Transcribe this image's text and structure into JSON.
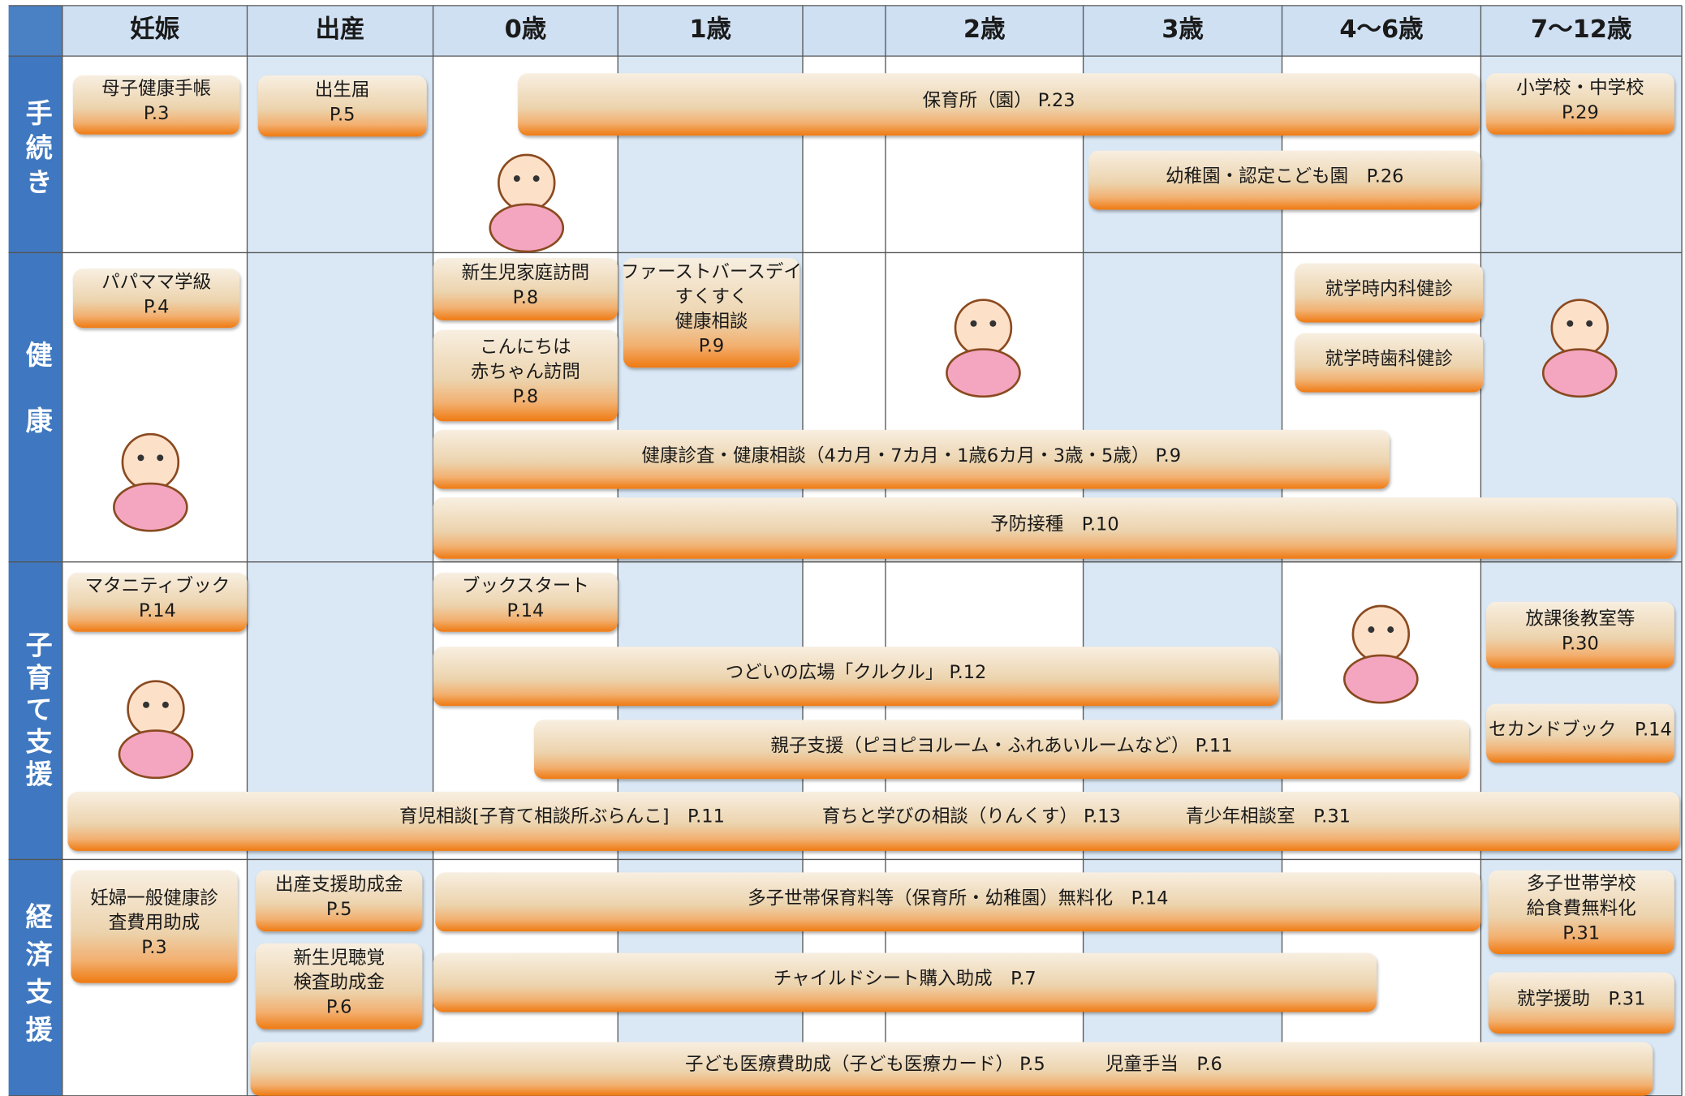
{
  "header": {
    "columns": [
      "妊娠",
      "出産",
      "0歳",
      "1歳",
      "2歳",
      "3歳",
      "4〜6歳",
      "7〜12歳"
    ]
  },
  "rows": [
    {
      "label": "手続き",
      "items": [
        {
          "lines": [
            "母子健康手帳",
            "P.3"
          ]
        },
        {
          "lines": [
            "出生届",
            "P.5"
          ]
        },
        {
          "lines": [
            "保育所（園） P.23"
          ]
        },
        {
          "lines": [
            "小学校・中学校",
            "P.29"
          ]
        },
        {
          "lines": [
            "幼稚園・認定こども園　P.26"
          ]
        }
      ]
    },
    {
      "label": "健康",
      "items": [
        {
          "lines": [
            "パパママ学級",
            "P.4"
          ]
        },
        {
          "lines": [
            "新生児家庭訪問",
            "P.8"
          ]
        },
        {
          "lines": [
            "ファーストバースデイ",
            "すくすく",
            "健康相談",
            "P.9"
          ]
        },
        {
          "lines": [
            "こんにちは",
            "赤ちゃん訪問",
            "P.8"
          ]
        },
        {
          "lines": [
            "就学時内科健診"
          ]
        },
        {
          "lines": [
            "就学時歯科健診"
          ]
        },
        {
          "lines": [
            "健康診査・健康相談（4カ月・7カ月・1歳6カ月・3歳・5歳） P.9"
          ]
        },
        {
          "lines": [
            "予防接種　P.10"
          ]
        }
      ]
    },
    {
      "label": "子育て支援",
      "items": [
        {
          "lines": [
            "マタニティブック",
            "P.14"
          ]
        },
        {
          "lines": [
            "ブックスタート",
            "P.14"
          ]
        },
        {
          "lines": [
            "放課後教室等",
            "P.30"
          ]
        },
        {
          "lines": [
            "つどいの広場「クルクル」 P.12"
          ]
        },
        {
          "lines": [
            "セカンドブック　P.14"
          ]
        },
        {
          "lines": [
            "親子支援（ピヨピヨルーム・ふれあいルームなど） P.11"
          ]
        },
        {
          "lines": [
            "育児相談[子育て相談所ぶらんこ]　P.11",
            "育ちと学びの相談（りんくす） P.13",
            "青少年相談室　P.31"
          ]
        }
      ]
    },
    {
      "label": "経済支援",
      "items": [
        {
          "lines": [
            "妊婦一般健康診",
            "査費用助成",
            "P.3"
          ]
        },
        {
          "lines": [
            "出産支援助成金",
            "P.5"
          ]
        },
        {
          "lines": [
            "多子世帯保育料等（保育所・幼稚園）無料化　P.14"
          ]
        },
        {
          "lines": [
            "多子世帯学校",
            "給食費無料化",
            "P.31"
          ]
        },
        {
          "lines": [
            "新生児聴覚",
            "検査助成金",
            "P.6"
          ]
        },
        {
          "lines": [
            "チャイルドシート購入助成　P.7"
          ]
        },
        {
          "lines": [
            "就学援助　P.31"
          ]
        },
        {
          "lines": [
            "子ども医療費助成（子ども医療カード） P.5",
            "児童手当　P.6"
          ]
        }
      ]
    }
  ]
}
